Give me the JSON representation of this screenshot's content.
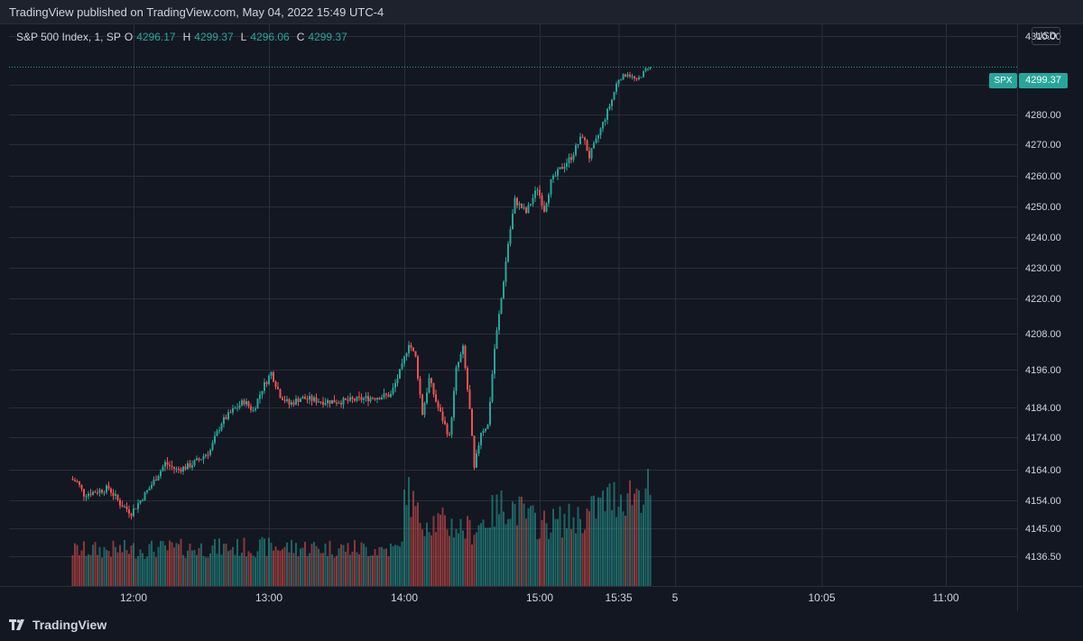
{
  "header": {
    "published": "TradingView published on TradingView.com, May 04, 2022 15:49 UTC-4"
  },
  "legend": {
    "symbol": "S&P 500 Index, 1, SP",
    "o_label": "O",
    "o_value": "4296.17",
    "h_label": "H",
    "h_value": "4299.37",
    "l_label": "L",
    "l_value": "4296.06",
    "c_label": "C",
    "c_value": "4299.37"
  },
  "price_scale": {
    "currency": "USD",
    "symbol_tag": "SPX",
    "last_price": "4299.37"
  },
  "branding": {
    "logo_text": "TradingView"
  },
  "colors": {
    "up": "#26a69a",
    "down": "#ef5350",
    "background": "#131722",
    "grid": "#2a2e39"
  },
  "chart_data": {
    "type": "candlestick",
    "title": "S&P 500 Index, 1, SP",
    "ylabel": "USD",
    "grid": true,
    "y_ticks": [
      4310.0,
      4300.0,
      4290.0,
      4280.0,
      4270.0,
      4260.0,
      4250.0,
      4240.0,
      4230.0,
      4220.0,
      4208.0,
      4196.0,
      4184.0,
      4174.0,
      4164.0,
      4154.0,
      4145.0,
      4136.5
    ],
    "y_tick_labels": [
      "4310.00",
      "",
      "4290.00",
      "4280.00",
      "4270.00",
      "4260.00",
      "4250.00",
      "4240.00",
      "4230.00",
      "4220.00",
      "4208.00",
      "4196.00",
      "4184.00",
      "4174.00",
      "4164.00",
      "4154.00",
      "4145.00",
      "4136.50"
    ],
    "x_tick_labels": [
      "12:00",
      "13:00",
      "14:00",
      "15:00",
      "15:35",
      "5",
      "10:05",
      "11:00"
    ],
    "x_tick_minutes": [
      720,
      780,
      840,
      900,
      935,
      960,
      1025,
      1080
    ],
    "session_start_minute": 693,
    "session_end_minute": 976,
    "last_price": 4299.37,
    "price_keypoints": [
      [
        693,
        4161
      ],
      [
        696,
        4160
      ],
      [
        699,
        4156
      ],
      [
        705,
        4157
      ],
      [
        710,
        4158
      ],
      [
        715,
        4153
      ],
      [
        720,
        4150
      ],
      [
        728,
        4158
      ],
      [
        735,
        4166
      ],
      [
        740,
        4164
      ],
      [
        745,
        4165
      ],
      [
        750,
        4167
      ],
      [
        755,
        4170
      ],
      [
        760,
        4179
      ],
      [
        765,
        4183
      ],
      [
        770,
        4186
      ],
      [
        774,
        4183
      ],
      [
        778,
        4190
      ],
      [
        782,
        4195
      ],
      [
        786,
        4188
      ],
      [
        790,
        4185
      ],
      [
        795,
        4187
      ],
      [
        805,
        4186
      ],
      [
        815,
        4186
      ],
      [
        825,
        4187
      ],
      [
        835,
        4188
      ],
      [
        840,
        4197
      ],
      [
        843,
        4205
      ],
      [
        846,
        4200
      ],
      [
        849,
        4182
      ],
      [
        852,
        4193
      ],
      [
        855,
        4186
      ],
      [
        858,
        4180
      ],
      [
        861,
        4174
      ],
      [
        864,
        4196
      ],
      [
        867,
        4203
      ],
      [
        870,
        4183
      ],
      [
        872,
        4164
      ],
      [
        875,
        4176
      ],
      [
        878,
        4178
      ],
      [
        881,
        4203
      ],
      [
        884,
        4220
      ],
      [
        887,
        4238
      ],
      [
        890,
        4252
      ],
      [
        895,
        4248
      ],
      [
        900,
        4256
      ],
      [
        903,
        4249
      ],
      [
        906,
        4258
      ],
      [
        910,
        4262
      ],
      [
        915,
        4266
      ],
      [
        920,
        4273
      ],
      [
        923,
        4266
      ],
      [
        926,
        4271
      ],
      [
        930,
        4279
      ],
      [
        933,
        4285
      ],
      [
        936,
        4293
      ],
      [
        940,
        4296
      ],
      [
        944,
        4292
      ],
      [
        949,
        4299.37
      ]
    ],
    "volume": {
      "description": "per-minute volume bars, colored by candle direction",
      "relative_levels_keypoints": [
        [
          693,
          0.32
        ],
        [
          780,
          0.35
        ],
        [
          838,
          0.33
        ],
        [
          841,
          0.9
        ],
        [
          846,
          0.62
        ],
        [
          870,
          0.5
        ],
        [
          885,
          0.75
        ],
        [
          900,
          0.55
        ],
        [
          920,
          0.62
        ],
        [
          930,
          0.78
        ],
        [
          949,
          0.88
        ]
      ]
    }
  }
}
